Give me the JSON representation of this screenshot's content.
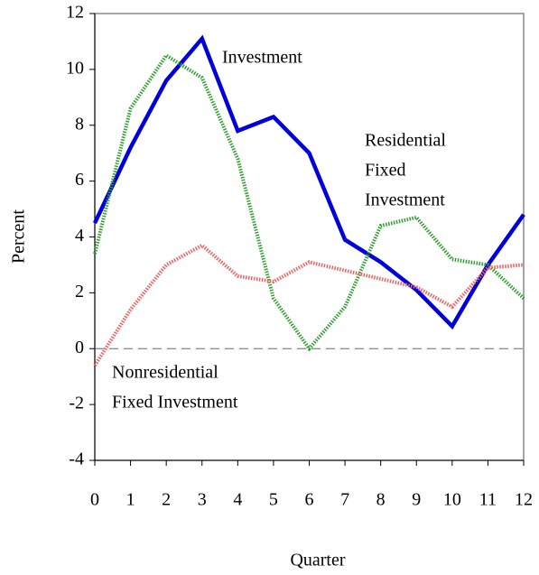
{
  "chart_data": {
    "type": "line",
    "x_label": "Quarter",
    "y_label": "Percent",
    "x": [
      0,
      1,
      2,
      3,
      4,
      5,
      6,
      7,
      8,
      9,
      10,
      11,
      12
    ],
    "xlim": [
      0,
      12
    ],
    "xticks": [
      0,
      1,
      2,
      3,
      4,
      5,
      6,
      7,
      8,
      9,
      10,
      11,
      12
    ],
    "ylim": [
      -4,
      12
    ],
    "yticks": [
      -4,
      -2,
      0,
      2,
      4,
      6,
      8,
      10,
      12
    ],
    "series": [
      {
        "color": "#0000dd",
        "style": "solid",
        "values": [
          4.5,
          7.2,
          9.6,
          11.1,
          7.8,
          8.3,
          7.0,
          3.9,
          3.1,
          2.1,
          0.8,
          3.0,
          4.8
        ]
      },
      {
        "color": "#2e9e2e",
        "style": "dotted",
        "values": [
          3.4,
          8.6,
          10.5,
          9.7,
          6.8,
          1.8,
          0.0,
          1.5,
          4.4,
          4.7,
          3.2,
          3.0,
          1.8
        ]
      },
      {
        "color": "#f06060",
        "style": "dotted",
        "values": [
          -0.6,
          1.4,
          3.0,
          3.7,
          2.6,
          2.4,
          3.1,
          2.8,
          2.5,
          2.2,
          1.5,
          2.9,
          3.0
        ]
      }
    ],
    "annotations": [
      {
        "lines": [
          "Investment"
        ]
      },
      {
        "lines": [
          "Residential",
          "Fixed",
          "Investment"
        ]
      },
      {
        "lines": [
          "Nonresidential",
          "Fixed Investment"
        ]
      }
    ]
  }
}
